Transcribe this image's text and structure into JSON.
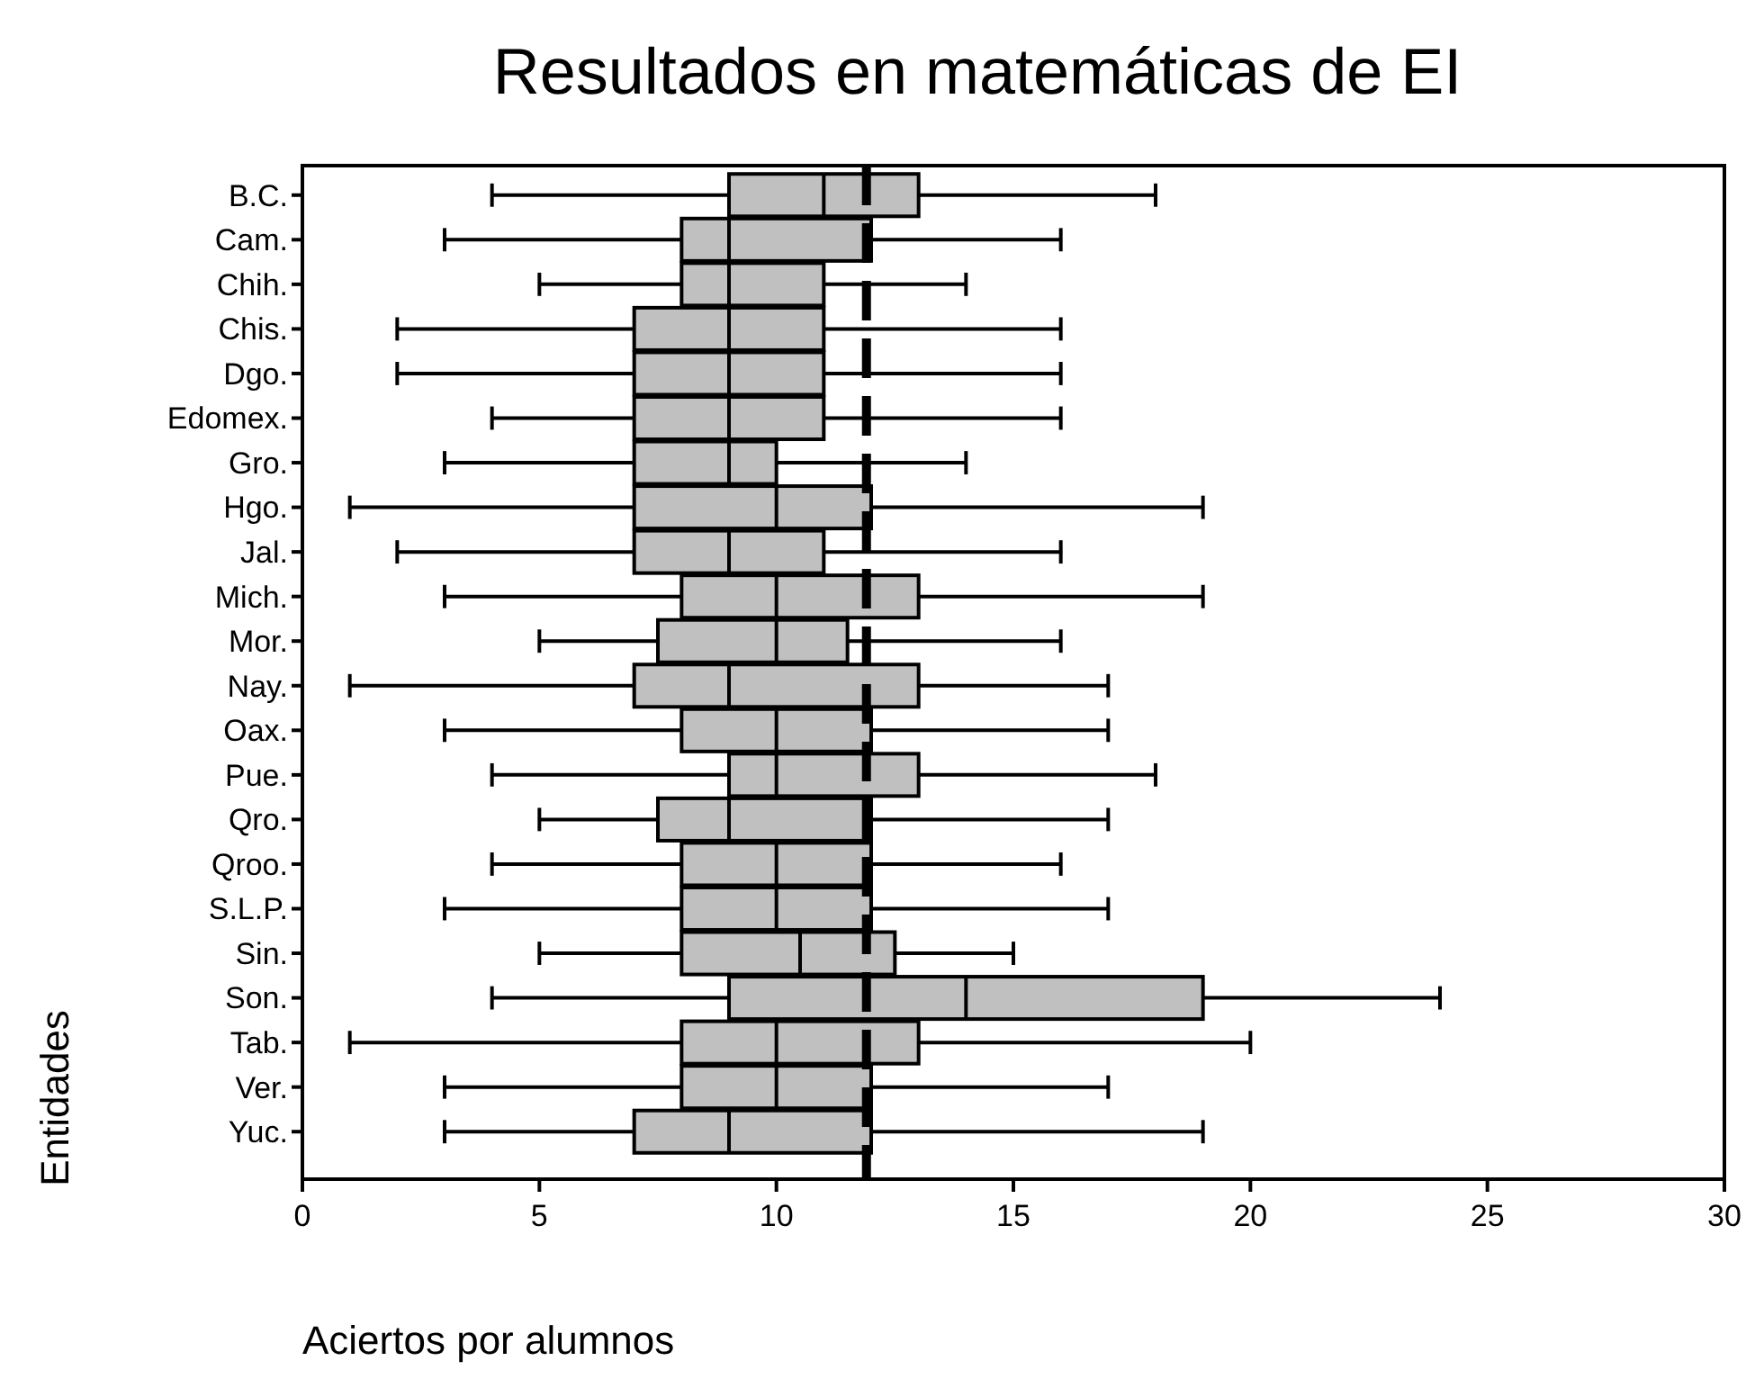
{
  "chart_data": {
    "type": "box",
    "orientation": "horizontal",
    "title": "Resultados en matemáticas de EI",
    "xlabel": "Aciertos por alumnos",
    "ylabel": "Entidades",
    "categories": [
      "B.C.",
      "Cam.",
      "Chih.",
      "Chis.",
      "Dgo.",
      "Edomex.",
      "Gro.",
      "Hgo.",
      "Jal.",
      "Mich.",
      "Mor.",
      "Nay.",
      "Oax.",
      "Pue.",
      "Qro.",
      "Qroo.",
      "S.L.P.",
      "Sin.",
      "Son.",
      "Tab.",
      "Ver.",
      "Yuc."
    ],
    "series": [
      {
        "color": "#c0c0c0",
        "boxes": [
          {
            "low": 4,
            "q1": 9,
            "median": 11,
            "q3": 13,
            "high": 18
          },
          {
            "low": 3,
            "q1": 8,
            "median": 9,
            "q3": 12,
            "high": 16
          },
          {
            "low": 5,
            "q1": 8,
            "median": 9,
            "q3": 11,
            "high": 14
          },
          {
            "low": 2,
            "q1": 7,
            "median": 9,
            "q3": 11,
            "high": 16
          },
          {
            "low": 2,
            "q1": 7,
            "median": 9,
            "q3": 11,
            "high": 16
          },
          {
            "low": 4,
            "q1": 7,
            "median": 9,
            "q3": 11,
            "high": 16
          },
          {
            "low": 3,
            "q1": 7,
            "median": 9,
            "q3": 10,
            "high": 14
          },
          {
            "low": 1,
            "q1": 7,
            "median": 10,
            "q3": 12,
            "high": 19
          },
          {
            "low": 2,
            "q1": 7,
            "median": 9,
            "q3": 11,
            "high": 16
          },
          {
            "low": 3,
            "q1": 8,
            "median": 10,
            "q3": 13,
            "high": 19
          },
          {
            "low": 5,
            "q1": 7.5,
            "median": 10,
            "q3": 11.5,
            "high": 16
          },
          {
            "low": 1,
            "q1": 7,
            "median": 9,
            "q3": 13,
            "high": 17
          },
          {
            "low": 3,
            "q1": 8,
            "median": 10,
            "q3": 12,
            "high": 17
          },
          {
            "low": 4,
            "q1": 9,
            "median": 10,
            "q3": 13,
            "high": 18
          },
          {
            "low": 5,
            "q1": 7.5,
            "median": 9,
            "q3": 12,
            "high": 17
          },
          {
            "low": 4,
            "q1": 8,
            "median": 10,
            "q3": 12,
            "high": 16
          },
          {
            "low": 3,
            "q1": 8,
            "median": 10,
            "q3": 12,
            "high": 17
          },
          {
            "low": 5,
            "q1": 8,
            "median": 10.5,
            "q3": 12.5,
            "high": 15
          },
          {
            "low": 4,
            "q1": 9,
            "median": 14,
            "q3": 19,
            "high": 24
          },
          {
            "low": 1,
            "q1": 8,
            "median": 10,
            "q3": 13,
            "high": 20
          },
          {
            "low": 3,
            "q1": 8,
            "median": 10,
            "q3": 12,
            "high": 17
          },
          {
            "low": 3,
            "q1": 7,
            "median": 9,
            "q3": 12,
            "high": 19
          }
        ]
      }
    ],
    "xlim": [
      0,
      30
    ],
    "xticks": [
      0,
      5,
      10,
      15,
      20,
      25,
      30
    ],
    "ref_lines": [
      {
        "axis": "x",
        "value": 11.9,
        "color": "#000000",
        "line_style": "dashed"
      }
    ],
    "grid": false
  }
}
